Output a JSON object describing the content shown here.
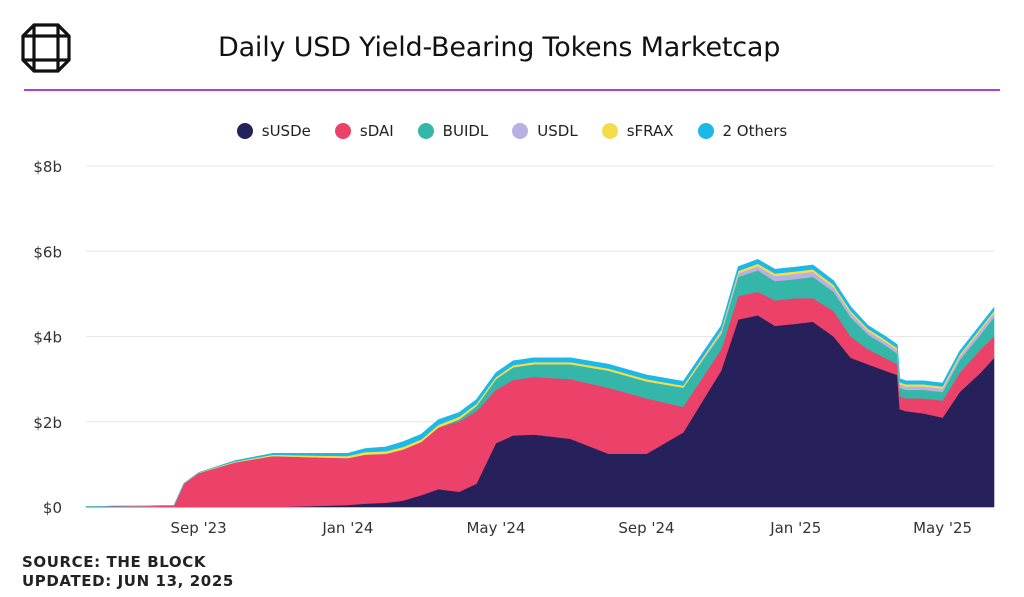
{
  "header": {
    "title": "Daily USD Yield-Bearing Tokens Marketcap",
    "logo_icon": "the-block-cube-logo-icon",
    "accent_color": "#b13fd6"
  },
  "footer": {
    "source": "SOURCE: THE BLOCK",
    "updated": "UPDATED: JUN 13, 2025"
  },
  "chart_data": {
    "type": "area",
    "stacked": true,
    "title": "Daily USD Yield-Bearing Tokens Marketcap",
    "xlabel": "",
    "ylabel": "",
    "y_unit": "billions USD",
    "ylim": [
      0,
      8
    ],
    "yticks": [
      {
        "value": 0,
        "label": "$0"
      },
      {
        "value": 2,
        "label": "$2b"
      },
      {
        "value": 4,
        "label": "$4b"
      },
      {
        "value": 6,
        "label": "$6b"
      },
      {
        "value": 8,
        "label": "$8b"
      }
    ],
    "xlim": [
      "2023-06-01",
      "2025-06-12"
    ],
    "xticks": [
      {
        "value": "2023-09-01",
        "label": "Sep '23"
      },
      {
        "value": "2024-01-01",
        "label": "Jan '24"
      },
      {
        "value": "2024-05-01",
        "label": "May '24"
      },
      {
        "value": "2024-09-01",
        "label": "Sep '24"
      },
      {
        "value": "2025-01-01",
        "label": "Jan '25"
      },
      {
        "value": "2025-05-01",
        "label": "May '25"
      }
    ],
    "grid": true,
    "legend_position": "top-center",
    "x": [
      "2023-06-01",
      "2023-07-01",
      "2023-08-01",
      "2023-08-12",
      "2023-08-20",
      "2023-09-01",
      "2023-10-01",
      "2023-11-01",
      "2023-12-01",
      "2024-01-01",
      "2024-01-15",
      "2024-02-01",
      "2024-02-15",
      "2024-03-01",
      "2024-03-15",
      "2024-04-01",
      "2024-04-15",
      "2024-05-01",
      "2024-05-15",
      "2024-06-01",
      "2024-07-01",
      "2024-08-01",
      "2024-09-01",
      "2024-10-01",
      "2024-11-01",
      "2024-11-15",
      "2024-12-01",
      "2024-12-15",
      "2025-01-01",
      "2025-01-15",
      "2025-02-01",
      "2025-02-15",
      "2025-03-01",
      "2025-03-15",
      "2025-03-25",
      "2025-03-27",
      "2025-04-01",
      "2025-04-15",
      "2025-05-01",
      "2025-05-15",
      "2025-06-01",
      "2025-06-12"
    ],
    "series": [
      {
        "name": "sUSDe",
        "color": "#26215b",
        "values": [
          0,
          0,
          0,
          0,
          0,
          0,
          0,
          0,
          0.02,
          0.05,
          0.08,
          0.1,
          0.15,
          0.28,
          0.42,
          0.36,
          0.55,
          1.5,
          1.68,
          1.7,
          1.6,
          1.25,
          1.25,
          1.75,
          3.2,
          4.4,
          4.5,
          4.25,
          4.3,
          4.35,
          4.0,
          3.5,
          3.35,
          3.2,
          3.1,
          2.3,
          2.25,
          2.2,
          2.1,
          2.7,
          3.15,
          3.5
        ]
      },
      {
        "name": "sDAI",
        "color": "#ec4168",
        "values": [
          0.01,
          0.02,
          0.03,
          0.04,
          0.55,
          0.8,
          1.05,
          1.2,
          1.15,
          1.1,
          1.15,
          1.15,
          1.2,
          1.25,
          1.45,
          1.65,
          1.7,
          1.25,
          1.3,
          1.35,
          1.4,
          1.55,
          1.3,
          0.6,
          0.5,
          0.55,
          0.55,
          0.6,
          0.6,
          0.55,
          0.6,
          0.5,
          0.35,
          0.3,
          0.25,
          0.3,
          0.3,
          0.35,
          0.4,
          0.45,
          0.55,
          0.5
        ]
      },
      {
        "name": "BUIDL",
        "color": "#34b7a8",
        "values": [
          0,
          0,
          0,
          0,
          0,
          0,
          0,
          0,
          0,
          0,
          0,
          0,
          0,
          0,
          0,
          0.05,
          0.12,
          0.25,
          0.3,
          0.3,
          0.35,
          0.4,
          0.4,
          0.45,
          0.35,
          0.45,
          0.5,
          0.45,
          0.45,
          0.5,
          0.45,
          0.45,
          0.35,
          0.3,
          0.25,
          0.2,
          0.2,
          0.2,
          0.2,
          0.3,
          0.35,
          0.45
        ]
      },
      {
        "name": "USDL",
        "color": "#b8afe3",
        "values": [
          0,
          0,
          0,
          0,
          0,
          0,
          0,
          0,
          0,
          0,
          0,
          0,
          0,
          0,
          0,
          0,
          0,
          0,
          0,
          0,
          0,
          0,
          0,
          0,
          0.05,
          0.08,
          0.1,
          0.12,
          0.12,
          0.12,
          0.1,
          0.1,
          0.08,
          0.08,
          0.08,
          0.08,
          0.08,
          0.08,
          0.08,
          0.08,
          0.1,
          0.1
        ]
      },
      {
        "name": "sFRAX",
        "color": "#f5dd4a",
        "values": [
          0,
          0,
          0,
          0,
          0,
          0.01,
          0.02,
          0.03,
          0.04,
          0.05,
          0.06,
          0.06,
          0.06,
          0.06,
          0.06,
          0.06,
          0.05,
          0.05,
          0.05,
          0.05,
          0.05,
          0.05,
          0.05,
          0.05,
          0.05,
          0.06,
          0.06,
          0.06,
          0.06,
          0.06,
          0.06,
          0.05,
          0.05,
          0.05,
          0.05,
          0.05,
          0.05,
          0.05,
          0.05,
          0.05,
          0.05,
          0.05
        ]
      },
      {
        "name": "2 Others",
        "color": "#1cb8e8",
        "values": [
          0,
          0,
          0,
          0,
          0,
          0,
          0.02,
          0.03,
          0.05,
          0.06,
          0.08,
          0.1,
          0.12,
          0.12,
          0.12,
          0.1,
          0.1,
          0.1,
          0.1,
          0.1,
          0.1,
          0.1,
          0.1,
          0.1,
          0.1,
          0.1,
          0.1,
          0.1,
          0.1,
          0.1,
          0.1,
          0.1,
          0.08,
          0.08,
          0.08,
          0.08,
          0.08,
          0.08,
          0.08,
          0.08,
          0.08,
          0.08
        ]
      }
    ]
  }
}
